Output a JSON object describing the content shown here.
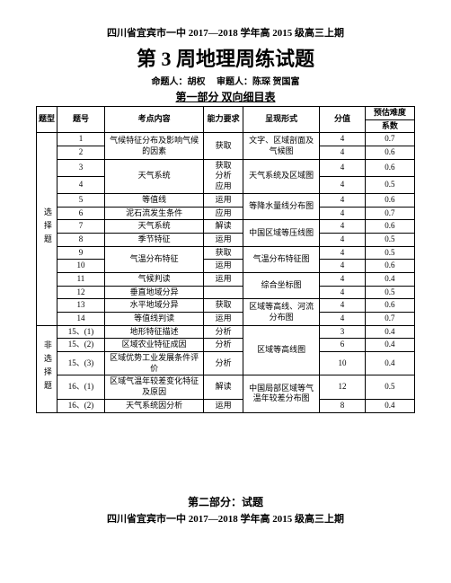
{
  "header": {
    "line1": "四川省宜宾市一中 2017—2018 学年高 2015 级高三上期",
    "title": "第 3 周地理周练试题",
    "author_label": "命题人：胡权",
    "review_label": "审题人：陈琛  贺国富",
    "section1": "第一部分  双向细目表"
  },
  "columns": {
    "c1": "题型",
    "c2": "题号",
    "c3": "考点内容",
    "c4": "能力要求",
    "c5": "呈现形式",
    "c6": "分值",
    "c7_a": "预估难度",
    "c7_b": "系数"
  },
  "type_labels": {
    "g1": "选择题",
    "g2": "非选择题"
  },
  "rows": [
    {
      "n": "1",
      "topic": "气候特征分布及影响气候的因素",
      "req": "获取",
      "form": "文字、区域剖面及气候图",
      "score": "4",
      "diff": "0.7"
    },
    {
      "n": "2",
      "topic": "",
      "req": "",
      "form": "",
      "score": "4",
      "diff": "0.6"
    },
    {
      "n": "3",
      "topic": "天气系统",
      "req": "获取\n分析\n应用",
      "form": "天气系统及区域图",
      "score": "4",
      "diff": "0.6"
    },
    {
      "n": "4",
      "topic": "",
      "req": "",
      "form": "",
      "score": "4",
      "diff": "0.5"
    },
    {
      "n": "5",
      "topic": "等值线",
      "req": "运用",
      "form": "等降水量线分布图",
      "score": "4",
      "diff": "0.6"
    },
    {
      "n": "6",
      "topic": "泥石流发生条件",
      "req": "应用",
      "form": "",
      "score": "4",
      "diff": "0.7"
    },
    {
      "n": "7",
      "topic": "天气系统",
      "req": "解读",
      "form": "中国区域等压线图",
      "score": "4",
      "diff": "0.6"
    },
    {
      "n": "8",
      "topic": "季节特征",
      "req": "运用",
      "form": "",
      "score": "4",
      "diff": "0.5"
    },
    {
      "n": "9",
      "topic": "气温分布特征",
      "req": "获取",
      "form": "气温分布特征图",
      "score": "4",
      "diff": "0.5"
    },
    {
      "n": "10",
      "topic": "",
      "req": "运用",
      "form": "",
      "score": "4",
      "diff": "0.6"
    },
    {
      "n": "11",
      "topic": "气候判读",
      "req": "运用",
      "form": "综合坐标图",
      "score": "4",
      "diff": "0.4"
    },
    {
      "n": "12",
      "topic": "垂直地域分异",
      "req": "",
      "form": "",
      "score": "4",
      "diff": "0.5"
    },
    {
      "n": "13",
      "topic": "水平地域分异",
      "req": "获取",
      "form": "区域等高线、河流分布图",
      "score": "4",
      "diff": "0.6"
    },
    {
      "n": "14",
      "topic": "等值线判读",
      "req": "运用",
      "form": "",
      "score": "4",
      "diff": "0.7"
    },
    {
      "n": "15、(1)",
      "topic": "地形特征描述",
      "req": "分析",
      "form": "区域等高线图",
      "score": "3",
      "diff": "0.4"
    },
    {
      "n": "15、(2)",
      "topic": "区域农业特征成因",
      "req": "分析",
      "form": "",
      "score": "6",
      "diff": "0.4"
    },
    {
      "n": "15、(3)",
      "topic": "区域优势工业发展条件评价",
      "req": "分析",
      "form": "",
      "score": "10",
      "diff": "0.4"
    },
    {
      "n": "16、(1)",
      "topic": "区域气温年较差变化特征及原因",
      "req": "解读",
      "form": "中国局部区域等气温年较差分布图",
      "score": "12",
      "diff": "0.5"
    },
    {
      "n": "16、(2)",
      "topic": "天气系统因分析",
      "req": "运用",
      "form": "",
      "score": "8",
      "diff": "0.4"
    }
  ],
  "part2": {
    "label": "第二部分：试题",
    "sub": "四川省宜宾市一中 2017—2018 学年高 2015 级高三上期"
  }
}
